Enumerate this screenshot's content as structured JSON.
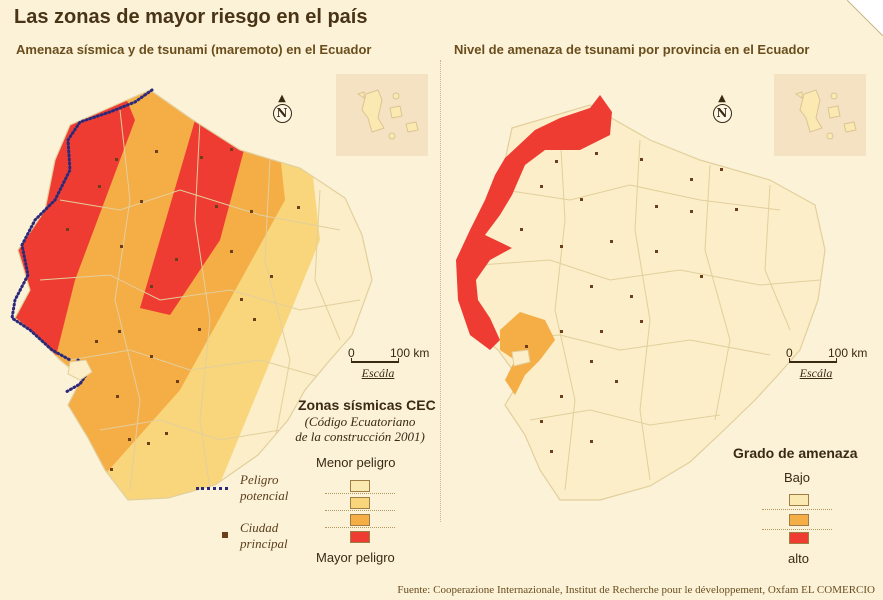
{
  "title": "Las zonas de mayor riesgo en el país",
  "left_panel": {
    "subtitle": "Amenaza sísmica y de tsunami (maremoto) en el Ecuador",
    "north_label": "N",
    "scale": {
      "start": "0",
      "end": "100 km",
      "caption": "Escála"
    },
    "legend": {
      "title": "Zonas sísmicas CEC",
      "subtitle_lines": [
        "(Código Ecuatoriano",
        "de la construcción 2001)"
      ],
      "top_label": "Menor peligro",
      "bottom_label": "Mayor peligro",
      "zones": [
        {
          "color": "#fbe9b2"
        },
        {
          "color": "#f9d67c"
        },
        {
          "color": "#f5ad46"
        },
        {
          "color": "#ee3c33"
        }
      ],
      "danger_label_lines": [
        "Peligro",
        "potencial"
      ],
      "city_label_lines": [
        "Ciudad",
        "principal"
      ]
    }
  },
  "right_panel": {
    "subtitle": "Nivel de amenaza de tsunami por provincia en el Ecuador",
    "north_label": "N",
    "scale": {
      "start": "0",
      "end": "100 km",
      "caption": "Escála"
    },
    "legend": {
      "title": "Grado de amenaza",
      "top_label": "Bajo",
      "bottom_label": "alto",
      "levels": [
        {
          "color": "#fbe9b2"
        },
        {
          "color": "#f5ad46"
        },
        {
          "color": "#ee3c33"
        }
      ]
    }
  },
  "footer": "Fuente: Cooperazione Internazionale, Institut de Recherche pour le développement, Oxfam EL COMERCIO",
  "colors": {
    "background": "#fbf2d8",
    "country_base": "#fbeec8",
    "province_lines": "#e2cf9c",
    "zone_low": "#fbe9b2",
    "zone_mid": "#f9d67c",
    "zone_high": "#f5ad46",
    "zone_max": "#ee3c33",
    "city": "#6b3e1c",
    "coast_hazard": "#2b2a7a"
  }
}
